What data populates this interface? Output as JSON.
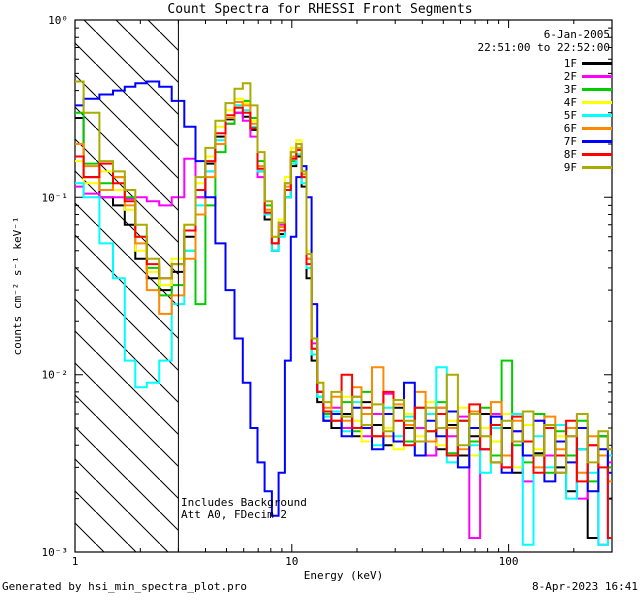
{
  "title": "Count Spectra for RHESSI Front Segments",
  "annotations": {
    "date": "6-Jan-2005",
    "time_range": "22:51:00 to 22:52:00",
    "note1": "Includes Background",
    "note2": "Att A0, FDecim 2"
  },
  "footer": {
    "left": "Generated by hsi_min_spectra_plot.pro",
    "right": "8-Apr-2023 16:41"
  },
  "chart_data": {
    "type": "line",
    "mode": "histogram-step",
    "title": "Count Spectra for RHESSI Front Segments",
    "xlabel": "Energy (keV)",
    "ylabel": "counts cm⁻² s⁻¹ keV⁻¹",
    "xscale": "log",
    "yscale": "log",
    "xlim": [
      1,
      300
    ],
    "ylim": [
      0.001,
      1
    ],
    "xticks": [
      1,
      10,
      100
    ],
    "xtick_labels": [
      "1",
      "10",
      "100"
    ],
    "yticks": [
      1,
      0.1,
      0.01,
      0.001
    ],
    "ytick_labels": [
      "10⁰",
      "10⁻¹",
      "10⁻²",
      "10⁻³"
    ],
    "grid": false,
    "legend_position": "inside-top-right",
    "cutoff_energy_kev": 3,
    "hatch_region": {
      "xmin": 1,
      "xmax": 3,
      "style": "diagonal-hatch"
    },
    "energy_kev": [
      1.0,
      1.2,
      1.4,
      1.6,
      1.8,
      2.0,
      2.3,
      2.6,
      3.0,
      3.4,
      3.8,
      4.2,
      4.7,
      5.2,
      5.7,
      6.2,
      6.7,
      7.2,
      7.8,
      8.4,
      9.0,
      9.6,
      10.2,
      10.8,
      11.4,
      12.0,
      12.7,
      13.5,
      14.5,
      16,
      18,
      20,
      22,
      25,
      28,
      31,
      35,
      39,
      44,
      49,
      55,
      62,
      70,
      78,
      88,
      98,
      110,
      123,
      138,
      155,
      174,
      195,
      219,
      245,
      275,
      300
    ],
    "series": [
      {
        "name": "1F",
        "color": "#000000",
        "values": [
          0.28,
          0.13,
          0.1,
          0.09,
          0.07,
          0.045,
          0.035,
          0.03,
          0.038,
          0.06,
          0.1,
          0.155,
          0.22,
          0.275,
          0.3,
          0.285,
          0.24,
          0.14,
          0.075,
          0.05,
          0.062,
          0.1,
          0.15,
          0.17,
          0.115,
          0.035,
          0.012,
          0.007,
          0.0055,
          0.005,
          0.006,
          0.0045,
          0.007,
          0.0052,
          0.004,
          0.0065,
          0.005,
          0.0042,
          0.006,
          0.0038,
          0.0052,
          0.0035,
          0.0045,
          0.006,
          0.0032,
          0.005,
          0.0028,
          0.0042,
          0.0036,
          0.005,
          0.003,
          0.0022,
          0.0038,
          0.0012,
          0.0045,
          0.002
        ]
      },
      {
        "name": "2F",
        "color": "#ff00ff",
        "values": [
          0.115,
          0.105,
          0.1,
          0.1,
          0.098,
          0.1,
          0.095,
          0.09,
          0.1,
          0.165,
          0.1,
          0.14,
          0.2,
          0.26,
          0.3,
          0.27,
          0.22,
          0.13,
          0.08,
          0.055,
          0.07,
          0.12,
          0.18,
          0.2,
          0.14,
          0.045,
          0.015,
          0.008,
          0.006,
          0.0065,
          0.005,
          0.0075,
          0.0045,
          0.006,
          0.0078,
          0.0042,
          0.006,
          0.005,
          0.0035,
          0.0065,
          0.0045,
          0.0058,
          0.0012,
          0.005,
          0.006,
          0.003,
          0.0048,
          0.0025,
          0.0055,
          0.0035,
          0.0028,
          0.0045,
          0.002,
          0.004,
          0.0011,
          0.0032
        ]
      },
      {
        "name": "3F",
        "color": "#00cc00",
        "values": [
          0.3,
          0.155,
          0.12,
          0.13,
          0.1,
          0.06,
          0.04,
          0.028,
          0.032,
          0.05,
          0.025,
          0.09,
          0.18,
          0.26,
          0.33,
          0.35,
          0.28,
          0.16,
          0.09,
          0.055,
          0.065,
          0.11,
          0.16,
          0.185,
          0.13,
          0.04,
          0.013,
          0.0075,
          0.006,
          0.0055,
          0.007,
          0.0048,
          0.008,
          0.0045,
          0.006,
          0.0072,
          0.0042,
          0.0065,
          0.0048,
          0.007,
          0.0036,
          0.0055,
          0.0042,
          0.0065,
          0.0035,
          0.012,
          0.004,
          0.0032,
          0.006,
          0.0028,
          0.0048,
          0.0035,
          0.0055,
          0.0025,
          0.0045,
          0.003
        ]
      },
      {
        "name": "4F",
        "color": "#ffff00",
        "values": [
          0.16,
          0.12,
          0.14,
          0.11,
          0.085,
          0.05,
          0.038,
          0.032,
          0.045,
          0.07,
          0.12,
          0.17,
          0.25,
          0.31,
          0.36,
          0.34,
          0.27,
          0.15,
          0.085,
          0.06,
          0.075,
          0.13,
          0.19,
          0.21,
          0.15,
          0.05,
          0.016,
          0.009,
          0.007,
          0.006,
          0.0075,
          0.0055,
          0.0042,
          0.0068,
          0.005,
          0.0038,
          0.006,
          0.0045,
          0.007,
          0.004,
          0.0055,
          0.0065,
          0.0035,
          0.005,
          0.0042,
          0.006,
          0.003,
          0.0052,
          0.0038,
          0.0025,
          0.0045,
          0.0032,
          0.005,
          0.0022,
          0.0038,
          0.0028
        ]
      },
      {
        "name": "5F",
        "color": "#00ffff",
        "values": [
          0.12,
          0.1,
          0.055,
          0.035,
          0.012,
          0.0085,
          0.009,
          0.012,
          0.025,
          0.05,
          0.09,
          0.14,
          0.21,
          0.28,
          0.33,
          0.31,
          0.25,
          0.14,
          0.08,
          0.05,
          0.06,
          0.1,
          0.155,
          0.175,
          0.12,
          0.04,
          0.013,
          0.0075,
          0.0058,
          0.0062,
          0.0048,
          0.007,
          0.0052,
          0.004,
          0.0065,
          0.0045,
          0.0058,
          0.0035,
          0.006,
          0.011,
          0.0032,
          0.0055,
          0.004,
          0.0028,
          0.005,
          0.0035,
          0.006,
          0.0011,
          0.0045,
          0.003,
          0.0052,
          0.002,
          0.0038,
          0.0028,
          0.0011,
          0.0035
        ]
      },
      {
        "name": "6F",
        "color": "#ff8800",
        "values": [
          0.2,
          0.15,
          0.11,
          0.13,
          0.09,
          0.055,
          0.03,
          0.022,
          0.028,
          0.045,
          0.08,
          0.13,
          0.2,
          0.28,
          0.345,
          0.33,
          0.26,
          0.15,
          0.085,
          0.055,
          0.068,
          0.115,
          0.17,
          0.19,
          0.135,
          0.045,
          0.014,
          0.008,
          0.0065,
          0.0075,
          0.0055,
          0.0085,
          0.006,
          0.011,
          0.0045,
          0.0068,
          0.0052,
          0.008,
          0.0042,
          0.0065,
          0.005,
          0.0038,
          0.0062,
          0.0045,
          0.007,
          0.0035,
          0.0055,
          0.0042,
          0.003,
          0.0058,
          0.0038,
          0.005,
          0.0028,
          0.0045,
          0.0035,
          0.0025
        ]
      },
      {
        "name": "7F",
        "color": "#0000ff",
        "values": [
          0.33,
          0.36,
          0.38,
          0.4,
          0.42,
          0.44,
          0.45,
          0.42,
          0.35,
          0.25,
          0.16,
          0.1,
          0.055,
          0.03,
          0.016,
          0.009,
          0.005,
          0.0032,
          0.0022,
          0.0016,
          0.0028,
          0.012,
          0.06,
          0.13,
          0.15,
          0.1,
          0.025,
          0.008,
          0.0055,
          0.006,
          0.0045,
          0.0065,
          0.005,
          0.0038,
          0.006,
          0.0042,
          0.009,
          0.0035,
          0.0055,
          0.0045,
          0.0062,
          0.003,
          0.005,
          0.0038,
          0.0058,
          0.0028,
          0.0048,
          0.0035,
          0.0055,
          0.0025,
          0.0042,
          0.0032,
          0.005,
          0.0022,
          0.0038,
          0.0028
        ]
      },
      {
        "name": "8F",
        "color": "#ff0000",
        "values": [
          0.17,
          0.13,
          0.155,
          0.12,
          0.095,
          0.06,
          0.042,
          0.035,
          0.042,
          0.065,
          0.11,
          0.16,
          0.23,
          0.29,
          0.32,
          0.3,
          0.245,
          0.145,
          0.082,
          0.055,
          0.065,
          0.11,
          0.165,
          0.185,
          0.13,
          0.042,
          0.014,
          0.008,
          0.0062,
          0.0055,
          0.01,
          0.005,
          0.0065,
          0.0045,
          0.008,
          0.0055,
          0.004,
          0.0065,
          0.0048,
          0.006,
          0.0035,
          0.0055,
          0.0068,
          0.0038,
          0.0052,
          0.003,
          0.0058,
          0.0042,
          0.0028,
          0.005,
          0.0035,
          0.0055,
          0.0025,
          0.004,
          0.003,
          0.0012
        ]
      },
      {
        "name": "9F",
        "color": "#aaaa00",
        "values": [
          0.45,
          0.3,
          0.16,
          0.14,
          0.11,
          0.07,
          0.045,
          0.035,
          0.042,
          0.07,
          0.13,
          0.19,
          0.27,
          0.34,
          0.41,
          0.44,
          0.33,
          0.18,
          0.095,
          0.06,
          0.072,
          0.12,
          0.18,
          0.2,
          0.14,
          0.048,
          0.016,
          0.009,
          0.007,
          0.008,
          0.0058,
          0.0075,
          0.0052,
          0.0068,
          0.0048,
          0.0072,
          0.0055,
          0.0042,
          0.0065,
          0.005,
          0.01,
          0.004,
          0.006,
          0.0045,
          0.0032,
          0.0055,
          0.0042,
          0.0062,
          0.0035,
          0.0052,
          0.0028,
          0.0045,
          0.006,
          0.0032,
          0.0048,
          0.0038
        ]
      }
    ]
  }
}
